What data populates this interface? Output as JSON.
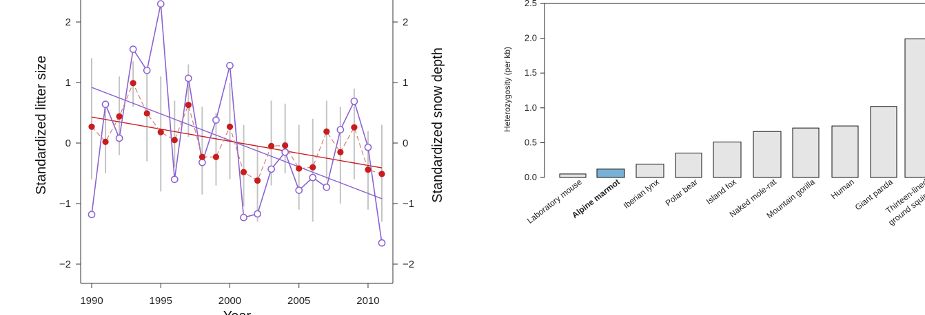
{
  "chart_data": [
    {
      "type": "line",
      "xlabel": "Year",
      "ylabel_left": "Standardized litter size",
      "ylabel_right": "Standardized snow depth",
      "xlim": [
        1990,
        2011
      ],
      "ylim": [
        -2.2,
        2.4
      ],
      "x_ticks": [
        "1990",
        "1995",
        "2000",
        "2005",
        "2010"
      ],
      "y_ticks_left": [
        "2",
        "1",
        "0",
        "−1",
        "−2"
      ],
      "y_ticks_right": [
        "2",
        "1",
        "0",
        "−1",
        "−2"
      ],
      "x": [
        1990,
        1991,
        1992,
        1993,
        1994,
        1995,
        1996,
        1997,
        1998,
        1999,
        2000,
        2001,
        2002,
        2003,
        2004,
        2005,
        2006,
        2007,
        2008,
        2009,
        2010,
        2011
      ],
      "series": [
        {
          "role": "snow depth (open purple circles)",
          "color": "#8a63d2",
          "values": [
            -1.18,
            0.64,
            0.08,
            1.55,
            1.2,
            2.3,
            -0.6,
            1.07,
            -0.32,
            0.38,
            1.28,
            -1.23,
            -1.17,
            -0.43,
            -0.15,
            -0.78,
            -0.57,
            -0.73,
            0.22,
            0.69,
            -0.07,
            -1.65
          ],
          "trend": [
            0.92,
            -0.92
          ]
        },
        {
          "role": "litter size (filled red circles)",
          "color": "#c81d1d",
          "values": [
            0.27,
            0.02,
            0.44,
            0.99,
            0.49,
            0.18,
            0.05,
            0.63,
            -0.23,
            -0.23,
            0.27,
            -0.48,
            -0.62,
            -0.05,
            -0.04,
            -0.42,
            -0.4,
            0.19,
            -0.15,
            0.26,
            -0.44,
            -0.51
          ],
          "error_low": [
            -0.6,
            -0.5,
            -0.2,
            0.6,
            -0.3,
            -0.8,
            -0.4,
            0.1,
            -0.85,
            -0.7,
            -0.6,
            -1.05,
            -1.3,
            -0.7,
            -0.5,
            -1.1,
            -1.3,
            -0.6,
            -1.0,
            -0.6,
            -1.1,
            -1.3
          ],
          "error_high": [
            1.4,
            0.6,
            1.1,
            1.35,
            1.2,
            1.1,
            0.7,
            1.3,
            0.6,
            0.5,
            1.0,
            0.3,
            -0.05,
            0.7,
            0.65,
            0.3,
            0.4,
            0.7,
            0.6,
            0.9,
            0.2,
            0.3
          ],
          "trend": [
            0.43,
            -0.41
          ]
        }
      ],
      "grid": false
    },
    {
      "type": "bar",
      "xlabel": "",
      "ylabel": "Heterozygosity (per kb)",
      "ylim": [
        0,
        2.5
      ],
      "y_ticks": [
        "0.0",
        "0.5",
        "1.0",
        "1.5",
        "2.0",
        "2.5"
      ],
      "categories": [
        "Laboratory mouse",
        "Alpine marmot",
        "Iberian lynx",
        "Polar bear",
        "Island fox",
        "Naked mole-rat",
        "Mountain gorilla",
        "Human",
        "Giant panda",
        "Thirteen-lined ground squirrel"
      ],
      "category_lines": [
        [
          "Laboratory mouse"
        ],
        [
          "Alpine marmot"
        ],
        [
          "Iberian lynx"
        ],
        [
          "Polar bear"
        ],
        [
          "Island fox"
        ],
        [
          "Naked mole-rat"
        ],
        [
          "Mountain gorilla"
        ],
        [
          "Human"
        ],
        [
          "Giant panda"
        ],
        [
          "Thirteen-lined",
          "ground squirrel"
        ]
      ],
      "values": [
        0.05,
        0.12,
        0.19,
        0.35,
        0.51,
        0.66,
        0.71,
        0.74,
        1.02,
        1.99
      ],
      "highlight": "Alpine marmot",
      "colors": {
        "bar": "#e5e5e5",
        "highlight_bar": "#79b1d6",
        "highlight_label": "#79b1d6",
        "outline": "#111111"
      },
      "grid": false
    }
  ]
}
